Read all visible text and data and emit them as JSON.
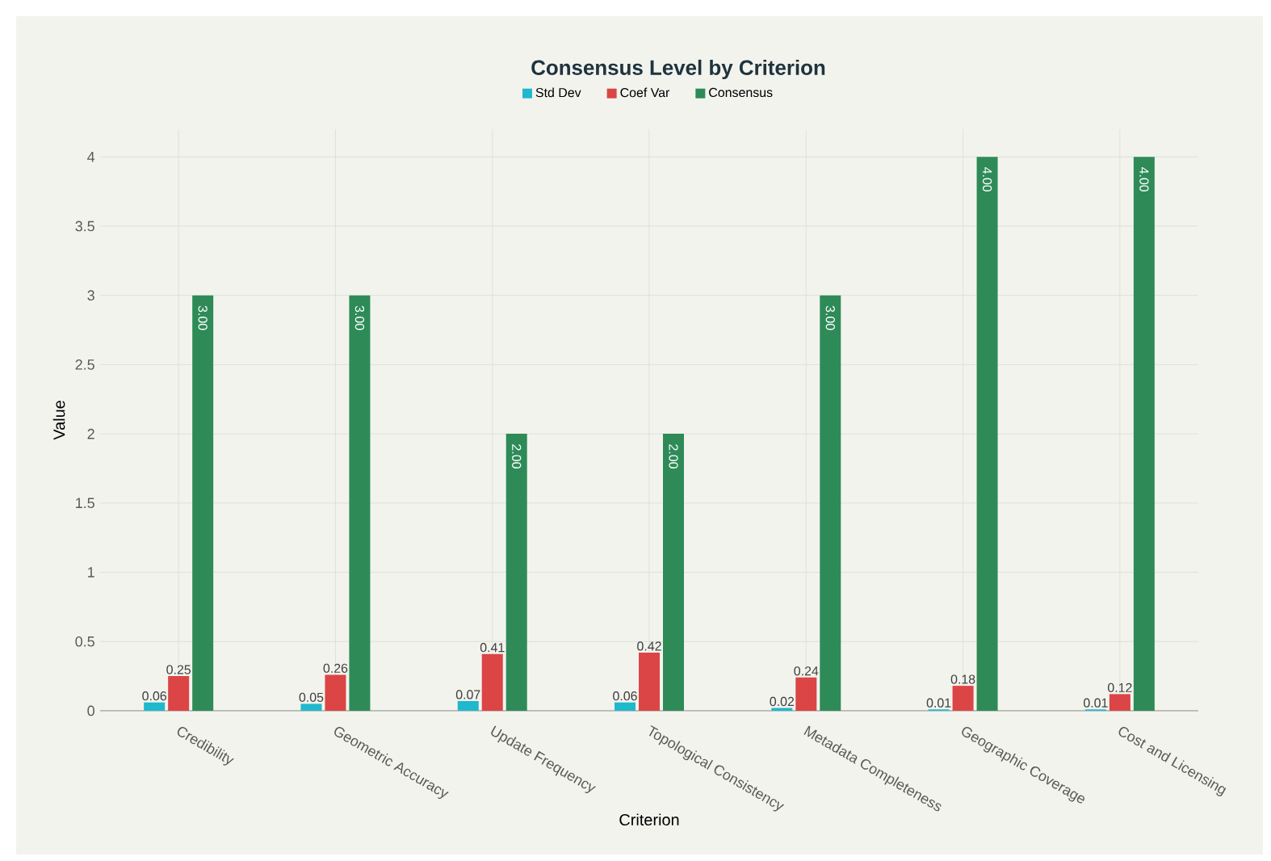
{
  "chart_data": {
    "type": "bar",
    "title": "Consensus Level by Criterion",
    "xlabel": "Criterion",
    "ylabel": "Value",
    "categories": [
      "Credibility",
      "Geometric Accuracy",
      "Update Frequency",
      "Topological Consistency",
      "Metadata Completeness",
      "Geographic Coverage",
      "Cost and Licensing"
    ],
    "series": [
      {
        "name": "Std Dev",
        "color": "#1fb8cd",
        "values": [
          0.06,
          0.05,
          0.07,
          0.06,
          0.02,
          0.01,
          0.01
        ],
        "value_labels": [
          "0.06",
          "0.05",
          "0.07",
          "0.06",
          "0.02",
          "0.01",
          "0.01"
        ]
      },
      {
        "name": "Coef Var",
        "color": "#db4545",
        "values": [
          0.25,
          0.26,
          0.41,
          0.42,
          0.24,
          0.18,
          0.12
        ],
        "value_labels": [
          "0.25",
          "0.26",
          "0.41",
          "0.42",
          "0.24",
          "0.18",
          "0.12"
        ]
      },
      {
        "name": "Consensus",
        "color": "#2e8b57",
        "values": [
          3,
          3,
          2,
          2,
          3,
          4,
          4
        ],
        "value_labels": [
          "3.00",
          "3.00",
          "2.00",
          "2.00",
          "3.00",
          "4.00",
          "4.00"
        ]
      }
    ],
    "ylim": [
      0,
      4.2
    ],
    "yticks": [
      0,
      0.5,
      1,
      1.5,
      2,
      2.5,
      3,
      3.5,
      4
    ],
    "grid": true,
    "legend": "top"
  }
}
